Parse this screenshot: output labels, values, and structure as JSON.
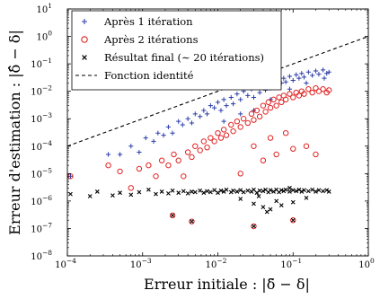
{
  "chart_data": {
    "type": "scatter",
    "x_scale": "log",
    "y_scale": "log",
    "xlim": [
      0.0001,
      1
    ],
    "ylim": [
      1e-08,
      10
    ],
    "xlabel": "Erreur initiale : |δ̃ − δ|",
    "ylabel": "Erreur d'estimation : |δ̂ − δ|",
    "x_ticks": [
      {
        "value": 0.0001,
        "base": "10",
        "exp": "−4"
      },
      {
        "value": 0.001,
        "base": "10",
        "exp": "−3"
      },
      {
        "value": 0.01,
        "base": "10",
        "exp": "−2"
      },
      {
        "value": 0.1,
        "base": "10",
        "exp": "−1"
      },
      {
        "value": 1,
        "base": "10",
        "exp": "0"
      }
    ],
    "y_ticks": [
      {
        "value": 1e-08,
        "base": "10",
        "exp": "−8"
      },
      {
        "value": 1e-07,
        "base": "10",
        "exp": "−7"
      },
      {
        "value": 1e-06,
        "base": "10",
        "exp": "−6"
      },
      {
        "value": 1e-05,
        "base": "10",
        "exp": "−5"
      },
      {
        "value": 0.0001,
        "base": "10",
        "exp": "−4"
      },
      {
        "value": 0.001,
        "base": "10",
        "exp": "−3"
      },
      {
        "value": 0.01,
        "base": "10",
        "exp": "−2"
      },
      {
        "value": 0.1,
        "base": "10",
        "exp": "−1"
      },
      {
        "value": 1,
        "base": "10",
        "exp": "0"
      },
      {
        "value": 10,
        "base": "10",
        "exp": "1"
      }
    ],
    "grid": false,
    "legend_position": "top-left",
    "series": [
      {
        "name": "Après 1 itération",
        "marker": "plus",
        "color": "#2b3ea8",
        "points": [
          [
            0.00011,
            8e-06
          ],
          [
            0.00035,
            5e-05
          ],
          [
            0.0005,
            5e-05
          ],
          [
            0.0007,
            0.0001
          ],
          [
            0.0009,
            6e-05
          ],
          [
            0.0011,
            0.0002
          ],
          [
            0.0014,
            0.00015
          ],
          [
            0.0016,
            0.0003
          ],
          [
            0.0019,
            0.00025
          ],
          [
            0.0022,
            0.0005
          ],
          [
            0.0025,
            0.0003
          ],
          [
            0.003,
            0.0008
          ],
          [
            0.0034,
            0.0006
          ],
          [
            0.004,
            0.001
          ],
          [
            0.0045,
            0.0007
          ],
          [
            0.005,
            0.0015
          ],
          [
            0.0058,
            0.0012
          ],
          [
            0.0065,
            0.002
          ],
          [
            0.0072,
            0.0015
          ],
          [
            0.008,
            0.003
          ],
          [
            0.009,
            0.0025
          ],
          [
            0.01,
            0.004
          ],
          [
            0.011,
            0.002
          ],
          [
            0.012,
            0.005
          ],
          [
            0.013,
            0.003
          ],
          [
            0.015,
            0.006
          ],
          [
            0.016,
            0.0035
          ],
          [
            0.018,
            0.008
          ],
          [
            0.02,
            0.005
          ],
          [
            0.022,
            0.01
          ],
          [
            0.025,
            0.007
          ],
          [
            0.028,
            0.012
          ],
          [
            0.03,
            0.006
          ],
          [
            0.033,
            0.015
          ],
          [
            0.036,
            0.009
          ],
          [
            0.04,
            0.018
          ],
          [
            0.043,
            0.011
          ],
          [
            0.047,
            0.02
          ],
          [
            0.05,
            0.013
          ],
          [
            0.055,
            0.025
          ],
          [
            0.06,
            0.016
          ],
          [
            0.065,
            0.028
          ],
          [
            0.07,
            0.02
          ],
          [
            0.075,
            0.03
          ],
          [
            0.08,
            0.022
          ],
          [
            0.09,
            0.035
          ],
          [
            0.1,
            0.025
          ],
          [
            0.11,
            0.04
          ],
          [
            0.12,
            0.03
          ],
          [
            0.13,
            0.045
          ],
          [
            0.14,
            0.033
          ],
          [
            0.16,
            0.05
          ],
          [
            0.18,
            0.038
          ],
          [
            0.2,
            0.055
          ],
          [
            0.22,
            0.042
          ],
          [
            0.25,
            0.06
          ],
          [
            0.28,
            0.045
          ],
          [
            0.3,
            0.05
          ],
          [
            0.15,
            0.02
          ],
          [
            0.09,
            0.012
          ],
          [
            0.05,
            0.005
          ],
          [
            0.03,
            0.002
          ],
          [
            0.02,
            0.0015
          ],
          [
            0.012,
            0.0008
          ],
          [
            0.26,
            0.03
          ]
        ]
      },
      {
        "name": "Après 2 itérations",
        "marker": "circle",
        "color": "#e02424",
        "points": [
          [
            0.00011,
            8e-06
          ],
          [
            0.00035,
            2e-05
          ],
          [
            0.0005,
            1.2e-05
          ],
          [
            0.0007,
            3e-06
          ],
          [
            0.0009,
            1.5e-05
          ],
          [
            0.0012,
            2e-05
          ],
          [
            0.0015,
            8e-06
          ],
          [
            0.0018,
            3e-05
          ],
          [
            0.0022,
            2e-05
          ],
          [
            0.0026,
            5e-05
          ],
          [
            0.003,
            3e-05
          ],
          [
            0.0035,
            8e-06
          ],
          [
            0.004,
            6e-05
          ],
          [
            0.0045,
            4e-05
          ],
          [
            0.005,
            0.0001
          ],
          [
            0.0058,
            7e-05
          ],
          [
            0.0065,
            0.00015
          ],
          [
            0.0072,
            9e-05
          ],
          [
            0.008,
            0.0002
          ],
          [
            0.009,
            0.00015
          ],
          [
            0.01,
            0.0003
          ],
          [
            0.011,
            0.0002
          ],
          [
            0.012,
            0.0004
          ],
          [
            0.013,
            0.00025
          ],
          [
            0.015,
            0.0006
          ],
          [
            0.016,
            0.00035
          ],
          [
            0.018,
            0.0008
          ],
          [
            0.02,
            0.0005
          ],
          [
            0.022,
            0.001
          ],
          [
            0.025,
            0.0007
          ],
          [
            0.028,
            0.0015
          ],
          [
            0.03,
            0.0009
          ],
          [
            0.033,
            0.002
          ],
          [
            0.036,
            0.0012
          ],
          [
            0.04,
            0.003
          ],
          [
            0.043,
            0.0018
          ],
          [
            0.047,
            0.004
          ],
          [
            0.05,
            0.0025
          ],
          [
            0.055,
            0.005
          ],
          [
            0.06,
            0.003
          ],
          [
            0.065,
            0.006
          ],
          [
            0.07,
            0.004
          ],
          [
            0.075,
            0.007
          ],
          [
            0.08,
            0.005
          ],
          [
            0.09,
            0.008
          ],
          [
            0.1,
            0.006
          ],
          [
            0.11,
            0.009
          ],
          [
            0.12,
            0.007
          ],
          [
            0.13,
            0.01
          ],
          [
            0.14,
            0.008
          ],
          [
            0.16,
            0.012
          ],
          [
            0.18,
            0.009
          ],
          [
            0.2,
            0.013
          ],
          [
            0.22,
            0.01
          ],
          [
            0.25,
            0.012
          ],
          [
            0.28,
            0.009
          ],
          [
            0.3,
            0.011
          ],
          [
            0.03,
            0.0001
          ],
          [
            0.05,
            0.0002
          ],
          [
            0.08,
            0.0003
          ],
          [
            0.04,
            3e-05
          ],
          [
            0.06,
            5e-05
          ],
          [
            0.1,
            8e-05
          ],
          [
            0.15,
            0.0001
          ],
          [
            0.2,
            5e-05
          ],
          [
            0.0025,
            3e-07
          ],
          [
            0.0045,
            1.8e-07
          ],
          [
            0.03,
            1.2e-07
          ],
          [
            0.1,
            2e-07
          ],
          [
            0.02,
            1e-05
          ]
        ]
      },
      {
        "name": "Résultat final (∼ 20 itérations)",
        "marker": "x",
        "color": "#000000",
        "points": [
          [
            0.00011,
            1.8e-06
          ],
          [
            0.0002,
            1.5e-06
          ],
          [
            0.00025,
            2.2e-06
          ],
          [
            0.0004,
            1.6e-06
          ],
          [
            0.0005,
            2e-06
          ],
          [
            0.0007,
            1.7e-06
          ],
          [
            0.0009,
            2.1e-06
          ],
          [
            0.0012,
            2.6e-06
          ],
          [
            0.0015,
            1.8e-06
          ],
          [
            0.0018,
            2.2e-06
          ],
          [
            0.0022,
            1.9e-06
          ],
          [
            0.0025,
            2.4e-06
          ],
          [
            0.003,
            2e-06
          ],
          [
            0.0035,
            2.3e-06
          ],
          [
            0.004,
            1.9e-06
          ],
          [
            0.0045,
            2.2e-06
          ],
          [
            0.005,
            2.1e-06
          ],
          [
            0.0058,
            2.4e-06
          ],
          [
            0.0065,
            2e-06
          ],
          [
            0.0072,
            2.3e-06
          ],
          [
            0.008,
            2.1e-06
          ],
          [
            0.009,
            2.5e-06
          ],
          [
            0.01,
            2e-06
          ],
          [
            0.011,
            2.4e-06
          ],
          [
            0.012,
            2.2e-06
          ],
          [
            0.013,
            2.6e-06
          ],
          [
            0.015,
            2.1e-06
          ],
          [
            0.016,
            2.4e-06
          ],
          [
            0.018,
            2.2e-06
          ],
          [
            0.02,
            2.5e-06
          ],
          [
            0.022,
            2.1e-06
          ],
          [
            0.025,
            2.4e-06
          ],
          [
            0.028,
            2.2e-06
          ],
          [
            0.03,
            2.6e-06
          ],
          [
            0.033,
            2e-06
          ],
          [
            0.036,
            2.4e-06
          ],
          [
            0.04,
            2.3e-06
          ],
          [
            0.043,
            2.6e-06
          ],
          [
            0.047,
            2.1e-06
          ],
          [
            0.05,
            2.5e-06
          ],
          [
            0.055,
            2.2e-06
          ],
          [
            0.06,
            2.6e-06
          ],
          [
            0.065,
            2.1e-06
          ],
          [
            0.07,
            2.5e-06
          ],
          [
            0.075,
            2.3e-06
          ],
          [
            0.08,
            2.6e-06
          ],
          [
            0.09,
            2.2e-06
          ],
          [
            0.1,
            2.5e-06
          ],
          [
            0.11,
            2.3e-06
          ],
          [
            0.12,
            2.6e-06
          ],
          [
            0.13,
            2.2e-06
          ],
          [
            0.14,
            2.5e-06
          ],
          [
            0.16,
            2.3e-06
          ],
          [
            0.18,
            2.6e-06
          ],
          [
            0.2,
            2.2e-06
          ],
          [
            0.22,
            2.5e-06
          ],
          [
            0.25,
            2.3e-06
          ],
          [
            0.28,
            2.5e-06
          ],
          [
            0.3,
            2.2e-06
          ],
          [
            0.03,
            8e-07
          ],
          [
            0.04,
            6e-07
          ],
          [
            0.05,
            5e-07
          ],
          [
            0.045,
            4e-07
          ],
          [
            0.07,
            7e-07
          ],
          [
            0.1,
            9e-07
          ],
          [
            0.02,
            1.2e-06
          ],
          [
            0.06,
            1e-06
          ],
          [
            0.0025,
            3e-07
          ],
          [
            0.0045,
            1.8e-07
          ],
          [
            0.03,
            1.2e-07
          ],
          [
            0.1,
            2e-07
          ],
          [
            0.15,
            1.3e-06
          ],
          [
            0.09,
            3e-06
          ],
          [
            0.035,
            1.5e-06
          ]
        ]
      },
      {
        "name": "Fonction identité",
        "type": "line",
        "style": "dashed",
        "color": "#000000",
        "points": [
          [
            0.0001,
            0.0001
          ],
          [
            1,
            1
          ]
        ]
      }
    ]
  }
}
